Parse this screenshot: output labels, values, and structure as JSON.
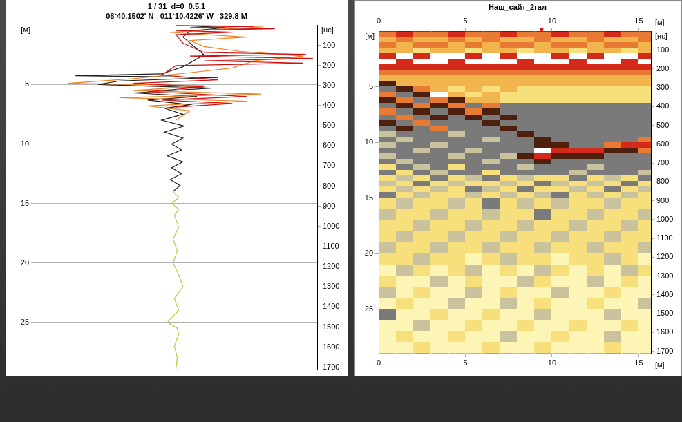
{
  "chart_data": [
    {
      "type": "line",
      "title": "1 / 31  d=0  0.5.1",
      "subtitle": "08`40.1502' N   011`10.4226' W   329.8 M",
      "ylabel": "[м]",
      "y2label": "[нс]",
      "xlim": [
        -1,
        1
      ],
      "xticks": [
        0
      ],
      "ylim": [
        0,
        29
      ],
      "yticks": [
        5,
        10,
        15,
        20,
        25
      ],
      "y2lim": [
        0,
        1712
      ],
      "y2ticks": [
        100,
        200,
        300,
        400,
        500,
        600,
        700,
        800,
        900,
        1000,
        1100,
        1200,
        1300,
        1400,
        1500,
        1600,
        1700
      ],
      "grid": true,
      "tick_labels": "y",
      "series": [
        {
          "color": "#d01010",
          "x": [
            0,
            0.55,
            0.1,
            0.7,
            0,
            0.4,
            0,
            0.05,
            0.2,
            0.92,
            0.1,
            0.97,
            0.2,
            0.9,
            0,
            -0.1,
            0.3,
            -0.3,
            0.2,
            -0.2,
            0.5,
            -0.1,
            0.4,
            0,
            0
          ],
          "y": [
            0,
            0.1,
            0.2,
            0.3,
            0.45,
            0.6,
            0.8,
            1.5,
            2.3,
            2.45,
            2.6,
            2.8,
            3.0,
            3.2,
            3.4,
            4.2,
            4.6,
            4.9,
            5.2,
            5.6,
            6.0,
            6.3,
            6.6,
            6.9,
            7.2
          ]
        },
        {
          "color": "#f08020",
          "x": [
            0,
            0.62,
            0.3,
            -0.05,
            0.5,
            0.1,
            0.2,
            0.45,
            0.9,
            0.55,
            0.4,
            0.1,
            -0.3,
            -0.76,
            0.2,
            -0.3,
            0.6,
            -0.4,
            0.5,
            -0.2,
            0.1,
            0
          ],
          "y": [
            0,
            0.15,
            0.35,
            0.6,
            1.0,
            1.3,
            1.8,
            2.2,
            2.6,
            3.0,
            3.6,
            4.0,
            4.5,
            4.9,
            5.1,
            5.5,
            5.8,
            6.1,
            6.4,
            6.8,
            7.2,
            8.0
          ]
        },
        {
          "color": "#202020",
          "x": [
            0,
            0.35,
            0.1,
            0.05,
            0.2,
            0.05,
            -0.1,
            -0.71,
            0.3,
            -0.4,
            -0.55,
            0.25,
            -0.3,
            0.15,
            -0.2,
            0.1,
            -0.08,
            0.05,
            -0.1,
            0.06,
            -0.08,
            0.05,
            -0.03,
            0.04,
            -0.06,
            0.05,
            -0.03,
            0.04,
            -0.04,
            0.03,
            -0.02
          ],
          "y": [
            0,
            0.2,
            0.5,
            1.0,
            2.5,
            3.5,
            4.1,
            4.25,
            4.4,
            4.7,
            5.0,
            5.3,
            5.7,
            6.0,
            6.3,
            6.7,
            7.0,
            7.5,
            8.0,
            8.5,
            9.0,
            9.5,
            10,
            10.5,
            11,
            11.5,
            12,
            12.5,
            13,
            13.5,
            14
          ]
        },
        {
          "color": "#c8c040",
          "x": [
            -0.02,
            0.02,
            -0.03,
            0.02,
            -0.01,
            0.02,
            -0.02,
            0.01,
            -0.02,
            0.02,
            0.05,
            -0.01,
            0.02,
            -0.06,
            0.01,
            0.02,
            -0.01,
            0.01,
            0
          ],
          "y": [
            14,
            14.5,
            15,
            15.5,
            16,
            17,
            18,
            19,
            20,
            21,
            22,
            23,
            24,
            25,
            25.5,
            26,
            27,
            28,
            29
          ]
        }
      ]
    },
    {
      "type": "heatmap",
      "title": "Наш_сайт_2гал",
      "xlabel": "[м]",
      "ylabel": "[м]",
      "y2label": "[нс]",
      "xlim": [
        0,
        15.7
      ],
      "xticks": [
        0,
        5,
        10,
        15
      ],
      "ylim": [
        0,
        29
      ],
      "yticks": [
        5,
        10,
        15,
        20,
        25
      ],
      "y2lim": [
        0,
        1712
      ],
      "y2ticks": [
        100,
        200,
        300,
        400,
        500,
        600,
        700,
        800,
        900,
        1000,
        1100,
        1200,
        1300,
        1400,
        1500,
        1600,
        1700
      ],
      "grid": false,
      "cursor_x": 9.4,
      "x_edges": [
        0,
        1,
        2,
        3,
        4,
        5,
        6,
        7,
        8,
        9,
        10,
        11,
        12,
        13,
        14,
        15,
        15.7
      ],
      "y_edges": [
        0,
        0.5,
        1,
        1.5,
        2,
        2.5,
        3,
        3.5,
        4,
        4.5,
        5,
        5.5,
        6,
        6.5,
        7,
        7.5,
        8,
        8.5,
        9,
        9.5,
        10,
        10.5,
        11,
        11.5,
        12,
        12.5,
        13,
        13.5,
        14,
        14.5,
        15,
        16,
        17,
        18,
        19,
        20,
        21,
        22,
        23,
        24,
        25,
        26,
        27,
        28,
        29
      ],
      "cells": [
        [
          3,
          4,
          3,
          3,
          4,
          3,
          3,
          4,
          3,
          3,
          4,
          3,
          3,
          4,
          3,
          3
        ],
        [
          2,
          3,
          2,
          2,
          3,
          2,
          3,
          2,
          2,
          3,
          2,
          2,
          3,
          2,
          2,
          3
        ],
        [
          3,
          2,
          3,
          3,
          2,
          3,
          2,
          3,
          3,
          2,
          3,
          3,
          2,
          3,
          3,
          2
        ],
        [
          2,
          2,
          1,
          2,
          2,
          1,
          2,
          2,
          1,
          2,
          2,
          1,
          2,
          2,
          1,
          2
        ],
        [
          4,
          5,
          4,
          5,
          5,
          4,
          5,
          4,
          5,
          5,
          4,
          5,
          4,
          5,
          5,
          4
        ],
        [
          5,
          4,
          5,
          5,
          4,
          5,
          5,
          5,
          4,
          5,
          5,
          4,
          5,
          5,
          4,
          5
        ],
        [
          4,
          4,
          4,
          4,
          4,
          4,
          4,
          4,
          4,
          4,
          4,
          4,
          4,
          4,
          4,
          4
        ],
        [
          3,
          3,
          3,
          3,
          3,
          3,
          3,
          3,
          3,
          3,
          3,
          3,
          3,
          3,
          3,
          3
        ],
        [
          2,
          2,
          2,
          2,
          2,
          2,
          2,
          2,
          2,
          2,
          2,
          2,
          2,
          2,
          2,
          2
        ],
        [
          7,
          2,
          2,
          2,
          2,
          2,
          2,
          2,
          2,
          2,
          2,
          2,
          2,
          2,
          2,
          2
        ],
        [
          6,
          7,
          3,
          2,
          1,
          2,
          1,
          2,
          1,
          1,
          1,
          1,
          1,
          1,
          1,
          1
        ],
        [
          3,
          6,
          7,
          5,
          2,
          1,
          2,
          1,
          1,
          1,
          1,
          1,
          1,
          1,
          1,
          1
        ],
        [
          7,
          3,
          6,
          3,
          7,
          2,
          2,
          1,
          1,
          1,
          1,
          1,
          1,
          1,
          1,
          1
        ],
        [
          6,
          7,
          3,
          7,
          3,
          6,
          3,
          6,
          6,
          6,
          6,
          6,
          6,
          6,
          6,
          6
        ],
        [
          3,
          6,
          7,
          6,
          7,
          3,
          7,
          6,
          6,
          6,
          6,
          6,
          6,
          6,
          6,
          6
        ],
        [
          6,
          3,
          6,
          7,
          6,
          7,
          6,
          7,
          6,
          6,
          6,
          6,
          6,
          6,
          6,
          6
        ],
        [
          7,
          6,
          3,
          6,
          6,
          6,
          7,
          6,
          6,
          6,
          6,
          6,
          6,
          6,
          6,
          6
        ],
        [
          6,
          7,
          6,
          3,
          6,
          6,
          6,
          7,
          6,
          6,
          6,
          6,
          6,
          6,
          6,
          6
        ],
        [
          8,
          6,
          6,
          6,
          8,
          6,
          6,
          6,
          7,
          6,
          6,
          6,
          6,
          6,
          6,
          6
        ],
        [
          6,
          8,
          6,
          6,
          6,
          6,
          8,
          6,
          6,
          7,
          6,
          6,
          6,
          6,
          6,
          3
        ],
        [
          8,
          6,
          6,
          8,
          6,
          6,
          6,
          6,
          6,
          7,
          7,
          6,
          6,
          3,
          4,
          4
        ],
        [
          6,
          6,
          8,
          6,
          6,
          8,
          6,
          6,
          6,
          5,
          4,
          4,
          4,
          7,
          7,
          3
        ],
        [
          8,
          6,
          6,
          6,
          8,
          6,
          6,
          8,
          7,
          4,
          7,
          7,
          7,
          6,
          6,
          6
        ],
        [
          6,
          8,
          6,
          6,
          6,
          6,
          8,
          6,
          6,
          7,
          6,
          6,
          6,
          6,
          6,
          6
        ],
        [
          1,
          6,
          8,
          6,
          1,
          6,
          6,
          6,
          8,
          6,
          6,
          6,
          8,
          6,
          6,
          6
        ],
        [
          6,
          1,
          6,
          8,
          6,
          6,
          1,
          6,
          6,
          6,
          6,
          8,
          6,
          6,
          6,
          8
        ],
        [
          1,
          8,
          1,
          6,
          1,
          8,
          6,
          1,
          8,
          1,
          1,
          6,
          1,
          8,
          1,
          6
        ],
        [
          8,
          1,
          6,
          1,
          8,
          1,
          1,
          8,
          1,
          6,
          8,
          1,
          8,
          1,
          6,
          1
        ],
        [
          1,
          8,
          1,
          8,
          1,
          6,
          8,
          1,
          6,
          1,
          1,
          8,
          1,
          6,
          1,
          8
        ],
        [
          6,
          1,
          8,
          1,
          1,
          8,
          1,
          8,
          1,
          8,
          6,
          1,
          8,
          1,
          8,
          1
        ],
        [
          1,
          8,
          1,
          1,
          8,
          1,
          6,
          1,
          8,
          1,
          8,
          1,
          1,
          8,
          1,
          1
        ],
        [
          8,
          1,
          1,
          8,
          1,
          1,
          8,
          1,
          1,
          6,
          1,
          1,
          8,
          1,
          1,
          8
        ],
        [
          1,
          1,
          8,
          1,
          1,
          8,
          1,
          1,
          8,
          1,
          1,
          8,
          1,
          1,
          8,
          1
        ],
        [
          1,
          8,
          1,
          1,
          8,
          1,
          1,
          8,
          1,
          1,
          8,
          1,
          1,
          8,
          1,
          1
        ],
        [
          8,
          1,
          1,
          8,
          1,
          1,
          8,
          1,
          1,
          8,
          1,
          1,
          8,
          1,
          1,
          8
        ],
        [
          1,
          1,
          8,
          1,
          1,
          0,
          1,
          8,
          1,
          1,
          0,
          1,
          1,
          8,
          1,
          0
        ],
        [
          0,
          8,
          1,
          0,
          1,
          8,
          0,
          1,
          0,
          8,
          1,
          0,
          1,
          0,
          8,
          1
        ],
        [
          1,
          0,
          0,
          8,
          0,
          1,
          0,
          0,
          8,
          1,
          0,
          0,
          8,
          0,
          1,
          0
        ],
        [
          8,
          0,
          1,
          0,
          0,
          8,
          0,
          1,
          0,
          0,
          8,
          0,
          0,
          1,
          0,
          0
        ],
        [
          0,
          1,
          0,
          0,
          8,
          0,
          0,
          8,
          0,
          1,
          0,
          0,
          1,
          0,
          0,
          8
        ],
        [
          6,
          0,
          0,
          1,
          0,
          0,
          1,
          0,
          0,
          8,
          0,
          0,
          0,
          8,
          0,
          0
        ],
        [
          0,
          0,
          8,
          0,
          0,
          1,
          0,
          0,
          1,
          0,
          0,
          1,
          0,
          0,
          1,
          0
        ],
        [
          0,
          1,
          0,
          0,
          1,
          0,
          0,
          8,
          0,
          0,
          1,
          0,
          0,
          8,
          0,
          0
        ],
        [
          0,
          0,
          1,
          0,
          0,
          0,
          1,
          0,
          0,
          1,
          0,
          0,
          0,
          1,
          0,
          0
        ]
      ]
    }
  ]
}
